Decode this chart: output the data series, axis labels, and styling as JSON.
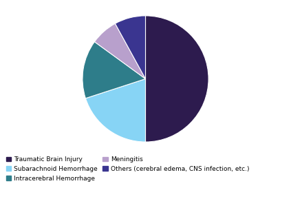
{
  "labels": [
    "Traumatic Brain Injury",
    "Subarachnoid Hemorrhage",
    "Intracerebral Hemorrhage",
    "Meningitis",
    "Others (cerebral edema, CNS infection, etc.)"
  ],
  "values": [
    50,
    20,
    15,
    7,
    8
  ],
  "colors": [
    "#2d1b4e",
    "#87d4f5",
    "#2e7d8a",
    "#b8a0cc",
    "#3a3590"
  ],
  "legend_col1_labels": [
    "Traumatic Brain Injury",
    "Intracerebral Hemorrhage",
    "Others (cerebral edema, CNS infection, etc.)"
  ],
  "legend_col1_colors": [
    "#2d1b4e",
    "#2e7d8a",
    "#3a3590"
  ],
  "legend_col2_labels": [
    "Subarachnoid Hemorrhage",
    "Meningitis"
  ],
  "legend_col2_colors": [
    "#87d4f5",
    "#b8a0cc"
  ],
  "startangle": 90,
  "background_color": "#ffffff"
}
